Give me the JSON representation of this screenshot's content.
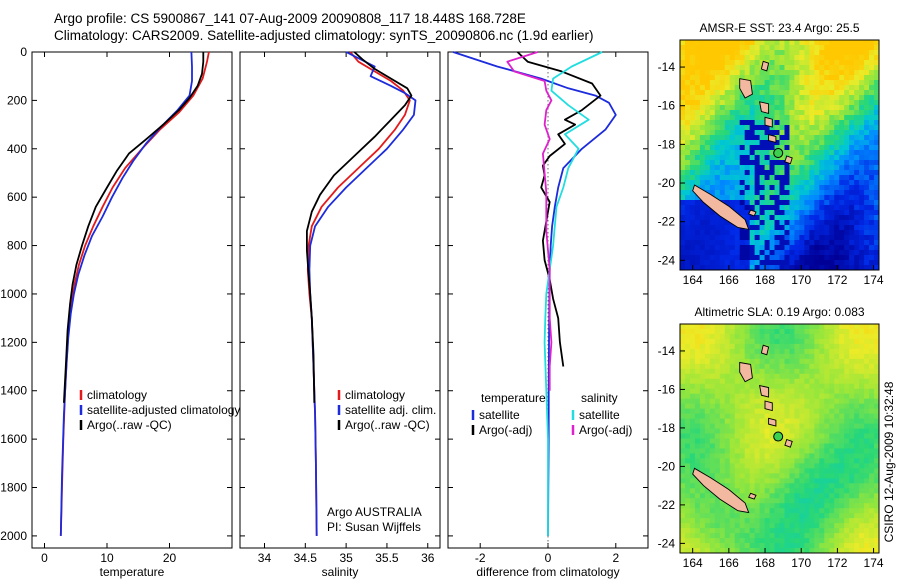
{
  "header": {
    "line1": "Argo profile: CS 5900867_141 07-Aug-2009 20090808_117 18.448S 168.728E",
    "line2": "Climatology: CARS2009. Satellite-adjusted climatology: synTS_20090806.nc (1.9d earlier)"
  },
  "credit": "CSIRO 12-Aug-2009 10:32:48",
  "colors": {
    "climatology": "#e31a1c",
    "satellite": "#1c2bdc",
    "argo": "#000000",
    "sat_diff": "#22dde0",
    "argo_sal_diff": "#dd22cc"
  },
  "chart_data": [
    {
      "type": "line",
      "id": "temperature",
      "xlabel": "temperature",
      "ylabel": "",
      "xlim": [
        -2,
        30
      ],
      "ylim": [
        2050,
        0
      ],
      "xticks": [
        0,
        10,
        20
      ],
      "yticks": [
        0,
        200,
        400,
        600,
        800,
        1000,
        1200,
        1400,
        1600,
        1800,
        2000
      ],
      "legend": [
        "climatology",
        "satellite-adjusted climatology",
        "Argo(..raw -QC)"
      ],
      "series": [
        {
          "name": "climatology",
          "color": "#e31a1c",
          "points": [
            [
              26.3,
              0
            ],
            [
              26.0,
              40
            ],
            [
              25.3,
              110
            ],
            [
              23.8,
              180
            ],
            [
              21.5,
              250
            ],
            [
              18.5,
              320
            ],
            [
              15.6,
              400
            ],
            [
              12.9,
              480
            ],
            [
              10.9,
              560
            ],
            [
              9.3,
              640
            ],
            [
              7.8,
              720
            ],
            [
              6.5,
              800
            ],
            [
              5.5,
              880
            ],
            [
              4.8,
              960
            ],
            [
              4.3,
              1040
            ],
            [
              3.9,
              1120
            ],
            [
              3.6,
              1250
            ],
            [
              3.3,
              1400
            ],
            [
              3.0,
              1600
            ],
            [
              2.8,
              1800
            ],
            [
              2.6,
              2000
            ]
          ]
        },
        {
          "name": "satellite-adjusted climatology",
          "color": "#1c2bdc",
          "points": [
            [
              23.5,
              0
            ],
            [
              23.6,
              60
            ],
            [
              23.6,
              120
            ],
            [
              23.2,
              180
            ],
            [
              21.3,
              240
            ],
            [
              18.6,
              310
            ],
            [
              16.2,
              380
            ],
            [
              14.2,
              450
            ],
            [
              12.5,
              520
            ],
            [
              10.8,
              600
            ],
            [
              9.3,
              680
            ],
            [
              7.6,
              760
            ],
            [
              6.4,
              840
            ],
            [
              5.4,
              920
            ],
            [
              4.7,
              1000
            ],
            [
              4.2,
              1080
            ],
            [
              3.8,
              1180
            ],
            [
              3.5,
              1300
            ],
            [
              3.1,
              1500
            ],
            [
              2.8,
              1750
            ],
            [
              2.6,
              2000
            ]
          ]
        },
        {
          "name": "Argo(..raw -QC)",
          "color": "#000000",
          "points": [
            [
              25.4,
              0
            ],
            [
              25.4,
              40
            ],
            [
              25.2,
              90
            ],
            [
              24.5,
              140
            ],
            [
              23.2,
              190
            ],
            [
              21.5,
              240
            ],
            [
              19.0,
              300
            ],
            [
              16.3,
              360
            ],
            [
              13.5,
              420
            ],
            [
              11.6,
              490
            ],
            [
              10.0,
              560
            ],
            [
              8.2,
              640
            ],
            [
              7.0,
              720
            ],
            [
              6.0,
              800
            ],
            [
              5.1,
              880
            ],
            [
              4.5,
              960
            ],
            [
              4.1,
              1040
            ],
            [
              3.7,
              1150
            ],
            [
              3.4,
              1300
            ],
            [
              3.1,
              1450
            ]
          ]
        }
      ]
    },
    {
      "type": "line",
      "id": "salinity",
      "xlabel": "salinity",
      "ylabel": "",
      "xlim": [
        33.7,
        36.15
      ],
      "ylim": [
        2050,
        0
      ],
      "xticks": [
        34,
        34.5,
        35,
        35.5,
        36
      ],
      "legend": [
        "climatology",
        "satellite adj. clim.",
        "Argo(..raw -QC)"
      ],
      "annotation": [
        "Argo AUSTRALIA",
        "PI: Susan Wijffels"
      ],
      "series": [
        {
          "name": "climatology",
          "color": "#e31a1c",
          "points": [
            [
              35.05,
              0
            ],
            [
              35.15,
              40
            ],
            [
              35.35,
              80
            ],
            [
              35.55,
              120
            ],
            [
              35.7,
              160
            ],
            [
              35.78,
              200
            ],
            [
              35.72,
              260
            ],
            [
              35.6,
              320
            ],
            [
              35.4,
              400
            ],
            [
              35.15,
              480
            ],
            [
              34.9,
              560
            ],
            [
              34.7,
              640
            ],
            [
              34.58,
              720
            ],
            [
              34.54,
              800
            ],
            [
              34.53,
              900
            ],
            [
              34.55,
              1000
            ],
            [
              34.58,
              1100
            ],
            [
              34.6,
              1300
            ],
            [
              34.62,
              1500
            ],
            [
              34.63,
              1700
            ],
            [
              34.64,
              2000
            ]
          ]
        },
        {
          "name": "satellite adj. clim.",
          "color": "#1c2bdc",
          "points": [
            [
              35.0,
              0
            ],
            [
              35.35,
              60
            ],
            [
              35.3,
              100
            ],
            [
              35.55,
              140
            ],
            [
              35.72,
              170
            ],
            [
              35.85,
              200
            ],
            [
              35.83,
              260
            ],
            [
              35.7,
              320
            ],
            [
              35.5,
              400
            ],
            [
              35.25,
              480
            ],
            [
              35.0,
              560
            ],
            [
              34.78,
              640
            ],
            [
              34.62,
              720
            ],
            [
              34.56,
              800
            ],
            [
              34.55,
              900
            ],
            [
              34.56,
              1000
            ],
            [
              34.58,
              1100
            ],
            [
              34.6,
              1300
            ],
            [
              34.62,
              1500
            ],
            [
              34.63,
              1700
            ],
            [
              34.64,
              2000
            ]
          ]
        },
        {
          "name": "Argo(..raw -QC)",
          "color": "#000000",
          "points": [
            [
              35.1,
              0
            ],
            [
              35.2,
              30
            ],
            [
              35.35,
              70
            ],
            [
              35.55,
              110
            ],
            [
              35.75,
              150
            ],
            [
              35.8,
              180
            ],
            [
              35.72,
              220
            ],
            [
              35.55,
              280
            ],
            [
              35.35,
              350
            ],
            [
              35.1,
              430
            ],
            [
              34.85,
              510
            ],
            [
              34.68,
              590
            ],
            [
              34.58,
              660
            ],
            [
              34.52,
              740
            ],
            [
              34.52,
              820
            ],
            [
              34.54,
              920
            ],
            [
              34.56,
              1000
            ],
            [
              34.58,
              1100
            ],
            [
              34.6,
              1250
            ],
            [
              34.61,
              1450
            ]
          ]
        }
      ]
    },
    {
      "type": "line",
      "id": "difference",
      "xlabel": "difference from climatology",
      "ylabel": "",
      "xlim": [
        -2.95,
        2.95
      ],
      "ylim": [
        2050,
        0
      ],
      "xticks": [
        -2,
        0,
        2
      ],
      "legend_titles": [
        "temperature",
        "salinity"
      ],
      "legend": [
        "satellite",
        "Argo(-adj)",
        "satellite",
        "Argo(-adj)"
      ],
      "series": [
        {
          "name": "satellite",
          "color": "#1c2bdc",
          "points": [
            [
              -2.8,
              0
            ],
            [
              -1.5,
              60
            ],
            [
              -0.2,
              110
            ],
            [
              0.6,
              150
            ],
            [
              1.4,
              180
            ],
            [
              1.8,
              210
            ],
            [
              2.0,
              260
            ],
            [
              1.7,
              320
            ],
            [
              1.0,
              400
            ],
            [
              0.45,
              480
            ],
            [
              0.3,
              560
            ],
            [
              0.2,
              640
            ],
            [
              0.12,
              720
            ],
            [
              0.08,
              800
            ],
            [
              0.05,
              900
            ],
            [
              0.04,
              1000
            ],
            [
              0.03,
              1200
            ],
            [
              0.02,
              1400
            ],
            [
              0.02,
              1600
            ],
            [
              0.01,
              1800
            ],
            [
              0.0,
              2000
            ]
          ]
        },
        {
          "name": "Argo(-adj)",
          "color": "#000000",
          "points": [
            [
              -0.9,
              0
            ],
            [
              -0.6,
              40
            ],
            [
              0.4,
              80
            ],
            [
              1.3,
              130
            ],
            [
              1.55,
              180
            ],
            [
              1.0,
              240
            ],
            [
              0.5,
              280
            ],
            [
              0.8,
              300
            ],
            [
              0.3,
              340
            ],
            [
              0.5,
              380
            ],
            [
              0.05,
              430
            ],
            [
              -0.15,
              470
            ],
            [
              -0.1,
              510
            ],
            [
              -0.2,
              560
            ],
            [
              0.05,
              620
            ],
            [
              -0.05,
              700
            ],
            [
              -0.15,
              780
            ],
            [
              -0.1,
              860
            ],
            [
              0.05,
              940
            ],
            [
              0.15,
              1020
            ],
            [
              0.3,
              1100
            ],
            [
              0.35,
              1200
            ],
            [
              0.45,
              1300
            ]
          ]
        },
        {
          "name": "satellite",
          "color": "#22dde0",
          "points": [
            [
              1.6,
              0
            ],
            [
              0.7,
              60
            ],
            [
              0.15,
              110
            ],
            [
              0.1,
              160
            ],
            [
              0.6,
              220
            ],
            [
              1.2,
              280
            ],
            [
              0.5,
              340
            ],
            [
              0.9,
              400
            ],
            [
              0.6,
              480
            ],
            [
              0.45,
              560
            ],
            [
              0.25,
              640
            ],
            [
              0.2,
              720
            ],
            [
              0.15,
              800
            ],
            [
              0.05,
              900
            ],
            [
              -0.05,
              1000
            ],
            [
              -0.08,
              1100
            ],
            [
              -0.1,
              1200
            ],
            [
              -0.05,
              1400
            ],
            [
              0.0,
              1600
            ],
            [
              0.0,
              1800
            ],
            [
              0.0,
              2000
            ]
          ]
        },
        {
          "name": "Argo(-adj)",
          "color": "#dd22cc",
          "points": [
            [
              -0.3,
              0
            ],
            [
              -1.2,
              40
            ],
            [
              -1.0,
              80
            ],
            [
              -0.1,
              120
            ],
            [
              -0.05,
              160
            ],
            [
              0.1,
              200
            ],
            [
              -0.05,
              240
            ],
            [
              -0.1,
              300
            ],
            [
              0.05,
              360
            ],
            [
              -0.15,
              420
            ],
            [
              -0.1,
              500
            ],
            [
              -0.05,
              580
            ],
            [
              -0.05,
              660
            ],
            [
              -0.05,
              740
            ],
            [
              0.0,
              820
            ],
            [
              0.05,
              900
            ],
            [
              0.05,
              1000
            ],
            [
              0.05,
              1100
            ],
            [
              0.1,
              1200
            ],
            [
              0.05,
              1300
            ],
            [
              0.05,
              1400
            ]
          ]
        }
      ]
    },
    {
      "type": "heatmap",
      "id": "sst_map",
      "title": "AMSR-E SST: 23.4 Argo: 25.5",
      "xlim": [
        163.3,
        174.3
      ],
      "ylim": [
        -24.5,
        -12.6
      ],
      "xticks": [
        164,
        166,
        168,
        170,
        172,
        174
      ],
      "yticks": [
        -14,
        -16,
        -18,
        -20,
        -22,
        -24
      ],
      "argo_position": [
        168.728,
        -18.448
      ]
    },
    {
      "type": "heatmap",
      "id": "sla_map",
      "title": "Altimetric SLA: 0.19 Argo: 0.083",
      "xlim": [
        163.3,
        174.3
      ],
      "ylim": [
        -24.5,
        -12.6
      ],
      "xticks": [
        164,
        166,
        168,
        170,
        172,
        174
      ],
      "yticks": [
        -14,
        -16,
        -18,
        -20,
        -22,
        -24
      ],
      "argo_position": [
        168.728,
        -18.448
      ]
    }
  ]
}
